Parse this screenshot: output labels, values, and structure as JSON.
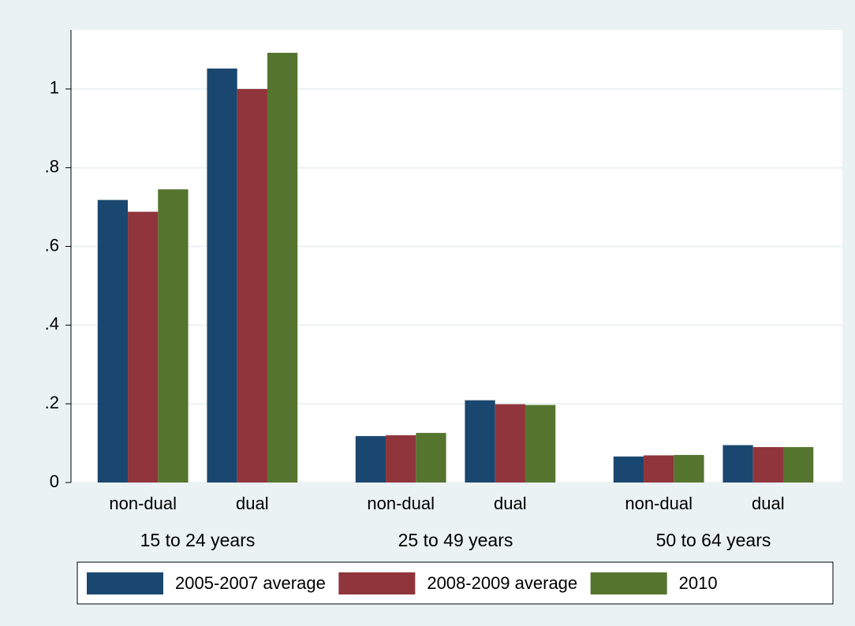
{
  "chart_data": {
    "type": "bar",
    "groups": [
      {
        "name": "15 to 24 years",
        "categories": [
          "non-dual",
          "dual"
        ]
      },
      {
        "name": "25 to 49 years",
        "categories": [
          "non-dual",
          "dual"
        ]
      },
      {
        "name": "50 to 64 years",
        "categories": [
          "non-dual",
          "dual"
        ]
      }
    ],
    "series": [
      {
        "name": "2005-2007 average",
        "color": "#1a476f",
        "values": [
          0.718,
          1.052,
          0.118,
          0.209,
          0.066,
          0.095
        ]
      },
      {
        "name": "2008-2009 average",
        "color": "#90353b",
        "values": [
          0.688,
          1.0,
          0.12,
          0.199,
          0.069,
          0.09
        ]
      },
      {
        "name": "2010",
        "color": "#55752f",
        "values": [
          0.745,
          1.092,
          0.126,
          0.197,
          0.07,
          0.09
        ]
      }
    ],
    "ylim": [
      0,
      1.15
    ],
    "yticks": [
      0,
      {
        "value": 0.2,
        "label": ".2"
      },
      {
        "value": 0.4,
        "label": ".4"
      },
      {
        "value": 0.6,
        "label": ".6"
      },
      {
        "value": 0.8,
        "label": ".8"
      },
      1
    ],
    "grid": true,
    "legend": "bottom"
  }
}
